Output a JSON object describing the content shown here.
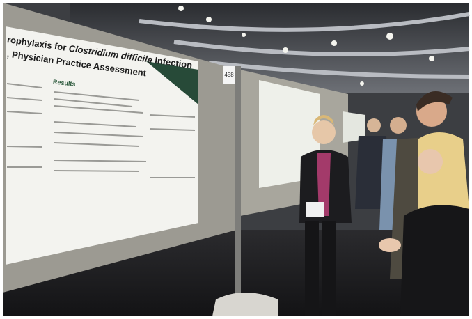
{
  "poster": {
    "title_prefix": "rophylaxis for",
    "title_italic": "Clostridium difficile",
    "title_suffix": "Infection",
    "title_line2": ", Physician Practice Assessment",
    "section_heading": "Results",
    "board_number": "458"
  }
}
